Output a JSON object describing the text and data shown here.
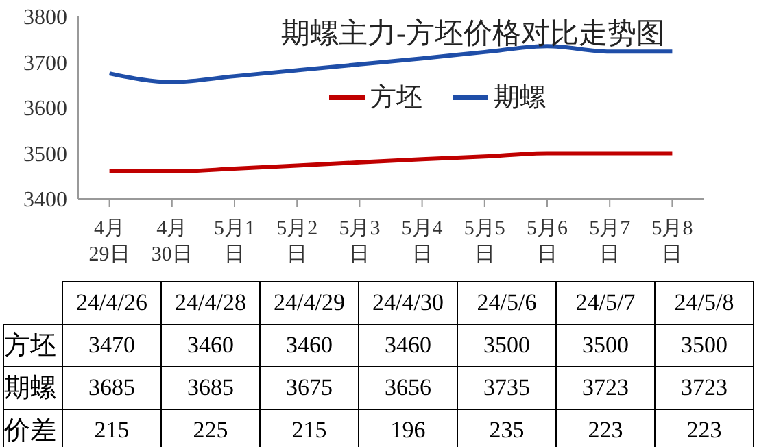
{
  "chart_data": [
    {
      "type": "line",
      "title": "期螺主力-方坯价格对比走势图",
      "categories": [
        "4月29日",
        "4月30日",
        "5月1日",
        "5月2日",
        "5月3日",
        "5月4日",
        "5月5日",
        "5月6日",
        "5月7日",
        "5月8日"
      ],
      "series": [
        {
          "name": "方坯",
          "color": "#c00000",
          "values": [
            3460,
            3460,
            3466,
            3473,
            3480,
            3487,
            3493,
            3500,
            3500,
            3500
          ]
        },
        {
          "name": "期螺",
          "color": "#1f4ea8",
          "values": [
            3675,
            3656,
            3669,
            3682,
            3695,
            3708,
            3722,
            3735,
            3723,
            3723
          ]
        }
      ],
      "ylim": [
        3400,
        3800
      ],
      "yticks": [
        3400,
        3500,
        3600,
        3700,
        3800
      ],
      "grid": false,
      "legend": "center",
      "marker": "none",
      "line_style": "solid"
    },
    {
      "type": "other",
      "categories": [
        "24/4/26",
        "24/4/28",
        "24/4/29",
        "24/4/30",
        "24/5/6",
        "24/5/7",
        "24/5/8"
      ],
      "series": [
        {
          "name": "方坯",
          "values": [
            3470,
            3460,
            3460,
            3460,
            3500,
            3500,
            3500
          ]
        },
        {
          "name": "期螺",
          "values": [
            3685,
            3685,
            3675,
            3656,
            3735,
            3723,
            3723
          ]
        },
        {
          "name": "价差",
          "values": [
            215,
            225,
            215,
            196,
            235,
            223,
            223
          ]
        }
      ],
      "data_labels": true
    }
  ]
}
